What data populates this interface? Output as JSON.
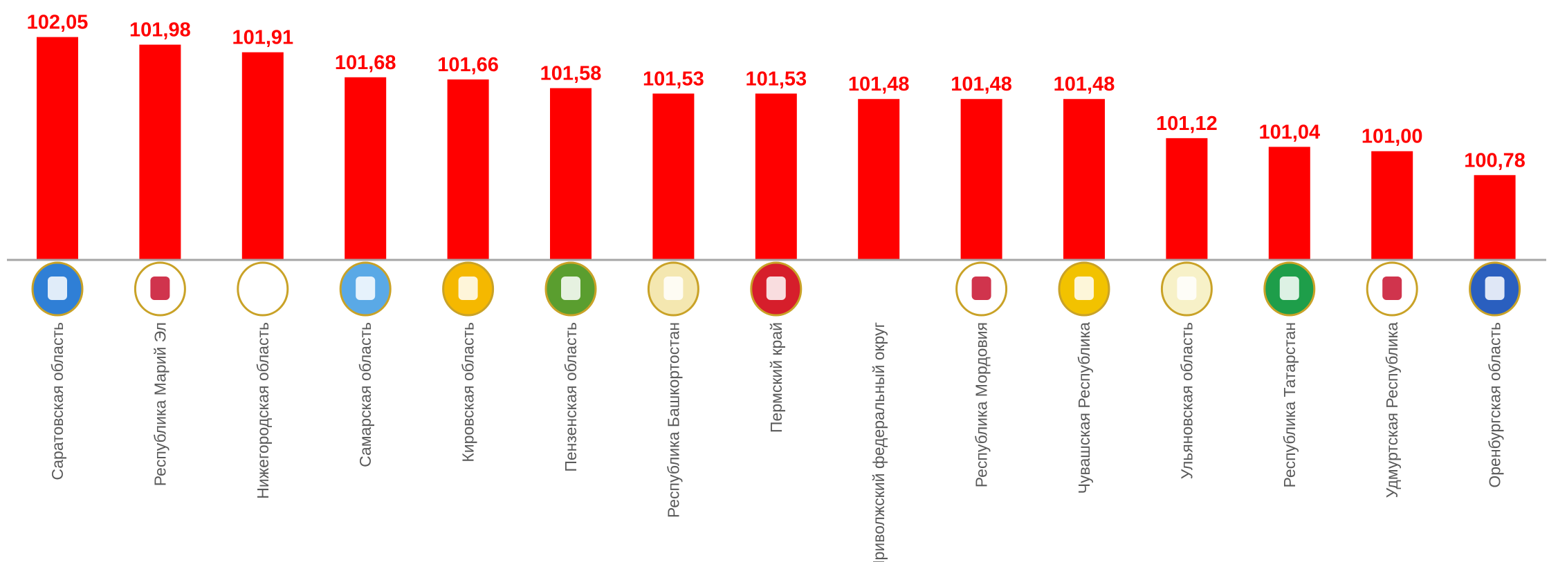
{
  "chart_data": {
    "type": "bar",
    "categories": [
      "Саратовская область",
      "Республика Марий Эл",
      "Нижегородская область",
      "Самарская область",
      "Кировская область",
      "Пензенская область",
      "Республика Башкортостан",
      "Пермский край",
      "Приволжский федеральный округ",
      "Республика Мордовия",
      "Чувашская Республика",
      "Ульяновская область",
      "Республика Татарстан",
      "Удмуртская Республика",
      "Оренбургская область"
    ],
    "values": [
      102.05,
      101.98,
      101.91,
      101.68,
      101.66,
      101.58,
      101.53,
      101.53,
      101.48,
      101.48,
      101.48,
      101.12,
      101.04,
      101.0,
      100.78
    ],
    "value_labels": [
      "102,05",
      "101,98",
      "101,91",
      "101,68",
      "101,66",
      "101,58",
      "101,53",
      "101,53",
      "101,48",
      "101,48",
      "101,48",
      "101,12",
      "101,04",
      "101,00",
      "100,78"
    ],
    "color": "#ff0000",
    "ylim": [
      100,
      102.2
    ]
  }
}
